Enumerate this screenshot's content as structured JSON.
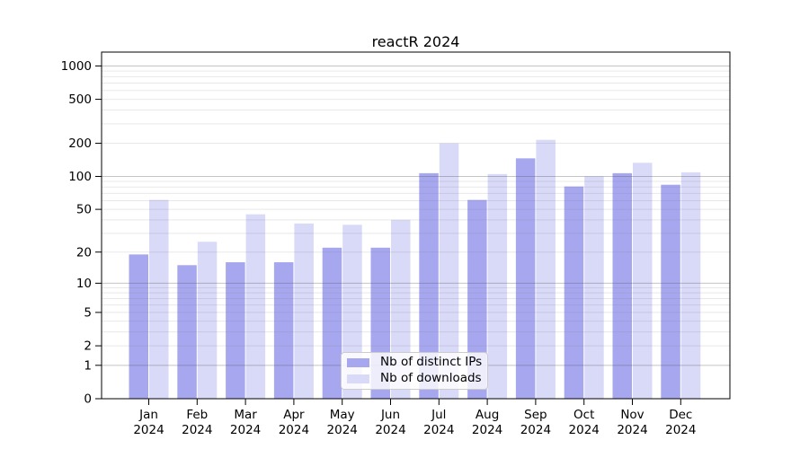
{
  "chart_data": {
    "type": "bar",
    "title": "reactR 2024",
    "months": [
      "Jan",
      "Feb",
      "Mar",
      "Apr",
      "May",
      "Jun",
      "Jul",
      "Aug",
      "Sep",
      "Oct",
      "Nov",
      "Dec"
    ],
    "year": "2024",
    "series": [
      {
        "name": "Nb of distinct IPs",
        "color": "#a7a7f0",
        "values": [
          19,
          15,
          16,
          16,
          22,
          22,
          107,
          61,
          146,
          81,
          107,
          84
        ]
      },
      {
        "name": "Nb of downloads",
        "color": "#d9d9f8",
        "values": [
          61,
          25,
          45,
          37,
          36,
          40,
          200,
          105,
          215,
          100,
          133,
          109
        ]
      }
    ],
    "y_axis": {
      "scale": "log1p",
      "ticks": [
        0,
        1,
        2,
        5,
        10,
        20,
        50,
        100,
        200,
        500,
        1000
      ],
      "major_gridlines": [
        1,
        10,
        100,
        1000
      ]
    },
    "legend_position": "inside-bottom-center",
    "colors": {
      "ips_bar": "#a7a7f0",
      "downloads_bar": "#d9d9f8",
      "major_grid": "#c3c3c3",
      "minor_grid": "#e9e9e9",
      "axis": "#000000",
      "background": "#ffffff"
    }
  }
}
